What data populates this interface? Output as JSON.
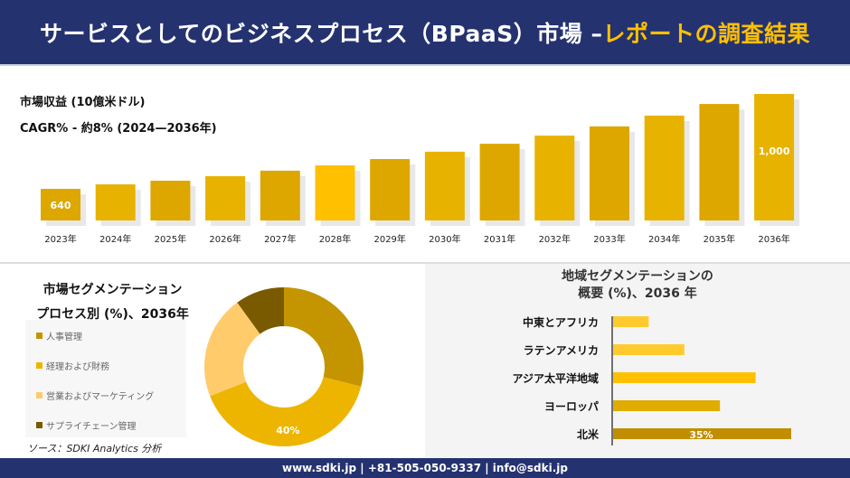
{
  "header": {
    "title_main": "サービスとしてのビジネスプロセス（BPaaS）市場 –",
    "title_highlight": "レポートの調査結果"
  },
  "revenue": {
    "label": "市場収益 (10億米ドル)",
    "cagr": "CAGR% - 約8% (2024—2036年)"
  },
  "colors": {
    "navy": "#253270",
    "accent": "#FFC000"
  },
  "chart_data": [
    {
      "type": "bar",
      "categories": [
        "2023年",
        "2024年",
        "2025年",
        "2026年",
        "2027年",
        "2028年",
        "2029年",
        "2030年",
        "2031年",
        "2032年",
        "2033年",
        "2034年",
        "2035年",
        "2036年"
      ],
      "values": [
        640,
        657,
        671,
        688,
        709,
        729,
        753,
        781,
        811,
        842,
        877,
        918,
        962,
        1000
      ],
      "data_labels": {
        "0": "640",
        "13": "1,000"
      },
      "ylabel": "市場収益 (10億米ドル)"
    },
    {
      "type": "pie",
      "donut": true,
      "title": "市場セグメンテーション プロセス別 (%)、2036年",
      "title_lines": [
        "市場セグメンテーション",
        "プロセス別 (%)、2036年"
      ],
      "labels": [
        "人事管理",
        "経理および財務",
        "営業およびマーケティング",
        "サプライチェーン管理"
      ],
      "values": [
        29,
        40,
        21,
        10
      ],
      "colors": [
        "#C49500",
        "#EDB500",
        "#FFCB6B",
        "#7A5A00"
      ],
      "data_labels": {
        "1": "40%"
      },
      "legend": "left"
    },
    {
      "type": "bar",
      "orientation": "horizontal",
      "title_lines": [
        "地域セグメンテーションの",
        "概要 (%)、2036 年"
      ],
      "categories": [
        "中東とアフリカ",
        "ラテンアメリカ",
        "アジア太平洋地域",
        "ヨーロッパ",
        "北米"
      ],
      "values": [
        7,
        14,
        28,
        21,
        35
      ],
      "colors": [
        "#FFCA2E",
        "#FFCA2E",
        "#FFC000",
        "#E0AC00",
        "#C08E00"
      ],
      "data_labels": {
        "4": "35%"
      }
    }
  ],
  "source": "ソース：SDKI Analytics 分析",
  "footer": "www.sdki.jp | +81-505-050-9337 | info@sdki.jp"
}
